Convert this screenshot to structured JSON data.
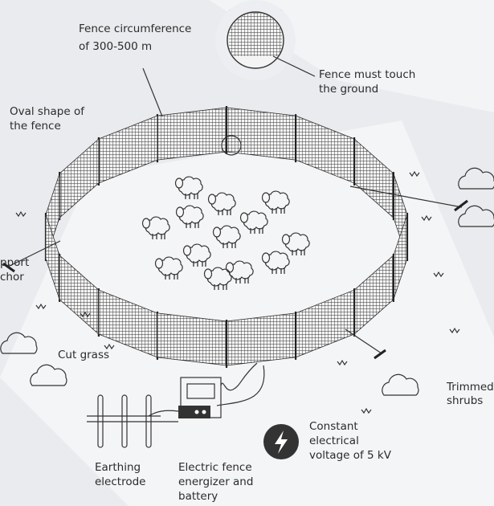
{
  "labels": {
    "fence_circumference": [
      "Fence circumference",
      "of 300-500 m"
    ],
    "fence_ground": [
      "Fence must touch",
      "the ground"
    ],
    "oval_shape": [
      "Oval shape of",
      "the fence"
    ],
    "support_anchor": [
      "pport",
      "chor"
    ],
    "cut_grass": "Cut grass",
    "trimmed_shrubs": [
      "Trimmed",
      "shrubs"
    ],
    "voltage": [
      "Constant",
      "electrical",
      "voltage of 5 kV"
    ],
    "earthing": [
      "Earthing",
      "electrode"
    ],
    "energizer": [
      "Electric fence",
      "energizer and",
      "battery"
    ]
  }
}
